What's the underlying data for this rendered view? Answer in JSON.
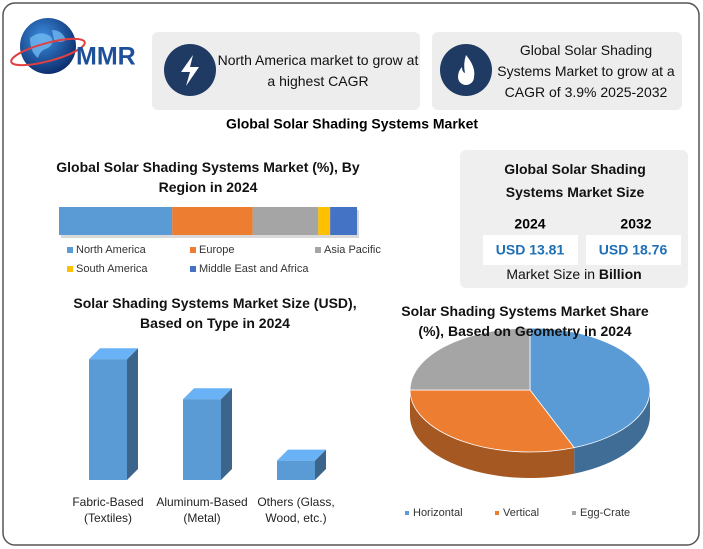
{
  "logo": "MMR",
  "callouts": [
    {
      "text": "North America market to grow at a highest CAGR"
    },
    {
      "text": "Global Solar Shading Systems Market to grow at a CAGR of 3.9% 2025-2032"
    }
  ],
  "title": "Global Solar Shading Systems Market",
  "market_size": {
    "title": "Global Solar Shading Systems Market Size",
    "years": [
      "2024",
      "2032"
    ],
    "values": [
      "USD 13.81",
      "USD 18.76"
    ],
    "caption": "Market Size in",
    "unit": "Billion"
  },
  "chart_data": [
    {
      "type": "bar",
      "orientation": "horizontal",
      "stacked": true,
      "title": "Global Solar Shading Systems Market (%), By Region in 2024",
      "xlim": [
        0,
        100
      ],
      "series": [
        {
          "name": "North America",
          "color": "#5b9bd5",
          "values": [
            38
          ]
        },
        {
          "name": "Europe",
          "color": "#ed7d31",
          "values": [
            27
          ]
        },
        {
          "name": "Asia Pacific",
          "color": "#a5a5a5",
          "values": [
            22
          ]
        },
        {
          "name": "South America",
          "color": "#ffc000",
          "values": [
            4
          ]
        },
        {
          "name": "Middle East and Africa",
          "color": "#4472c4",
          "values": [
            9
          ]
        }
      ]
    },
    {
      "type": "bar",
      "orientation": "vertical",
      "three_d": true,
      "title": "Solar Shading Systems Market Size (USD), Based on Type in 2024",
      "categories": [
        "Fabric-Based (Textiles)",
        "Aluminum-Based (Metal)",
        "Others (Glass, Wood, etc.)"
      ],
      "values": [
        7.55,
        5.05,
        1.21
      ],
      "color": "#5b9bd5",
      "ylim": [
        0,
        8
      ]
    },
    {
      "type": "pie",
      "three_d": true,
      "title": "Solar Shading Systems Market Share (%), Based on Geometry in 2024",
      "categories": [
        "Horizontal",
        "Vertical",
        "Egg-Crate"
      ],
      "values": [
        44,
        31,
        25
      ],
      "colors": [
        "#5b9bd5",
        "#ed7d31",
        "#a5a5a5"
      ]
    }
  ]
}
